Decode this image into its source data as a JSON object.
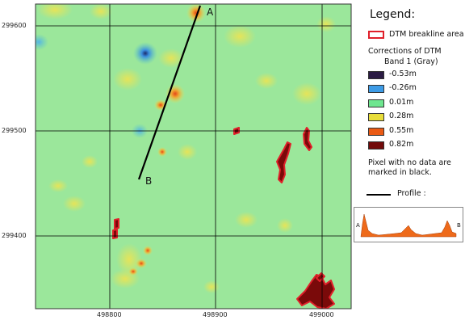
{
  "map": {
    "y_ticks": [
      "299600",
      "299500",
      "299400"
    ],
    "x_ticks": [
      "498800",
      "498900",
      "499000"
    ],
    "profile_start": "A",
    "profile_end": "B",
    "colors": {
      "background_field": "#9be79b",
      "grid": "#000000",
      "profile_line": "#000000",
      "breakline_edge": "#e0202a",
      "breakline_fill": "#7a0a0a"
    }
  },
  "legend": {
    "title": "Legend:",
    "breakline_label": "DTM breakline area",
    "corrections_title": "Corrections of DTM",
    "band_label": "Band 1 (Gray)",
    "classes": [
      {
        "label": "-0.53m",
        "color": "#2b1b44"
      },
      {
        "label": "-0.26m",
        "color": "#3d9be6"
      },
      {
        "label": "0.01m",
        "color": "#6ee68f"
      },
      {
        "label": "0.28m",
        "color": "#e8dd3a"
      },
      {
        "label": "0.55m",
        "color": "#ea5a14"
      },
      {
        "label": "0.82m",
        "color": "#720a0a"
      }
    ],
    "nodata_note_line1": "Pixel with no data are",
    "nodata_note_line2": "marked in black.",
    "profile_label": "Profile :",
    "inset_start": "A",
    "inset_end": "B",
    "inset_fill_color": "#ee6a1a"
  }
}
